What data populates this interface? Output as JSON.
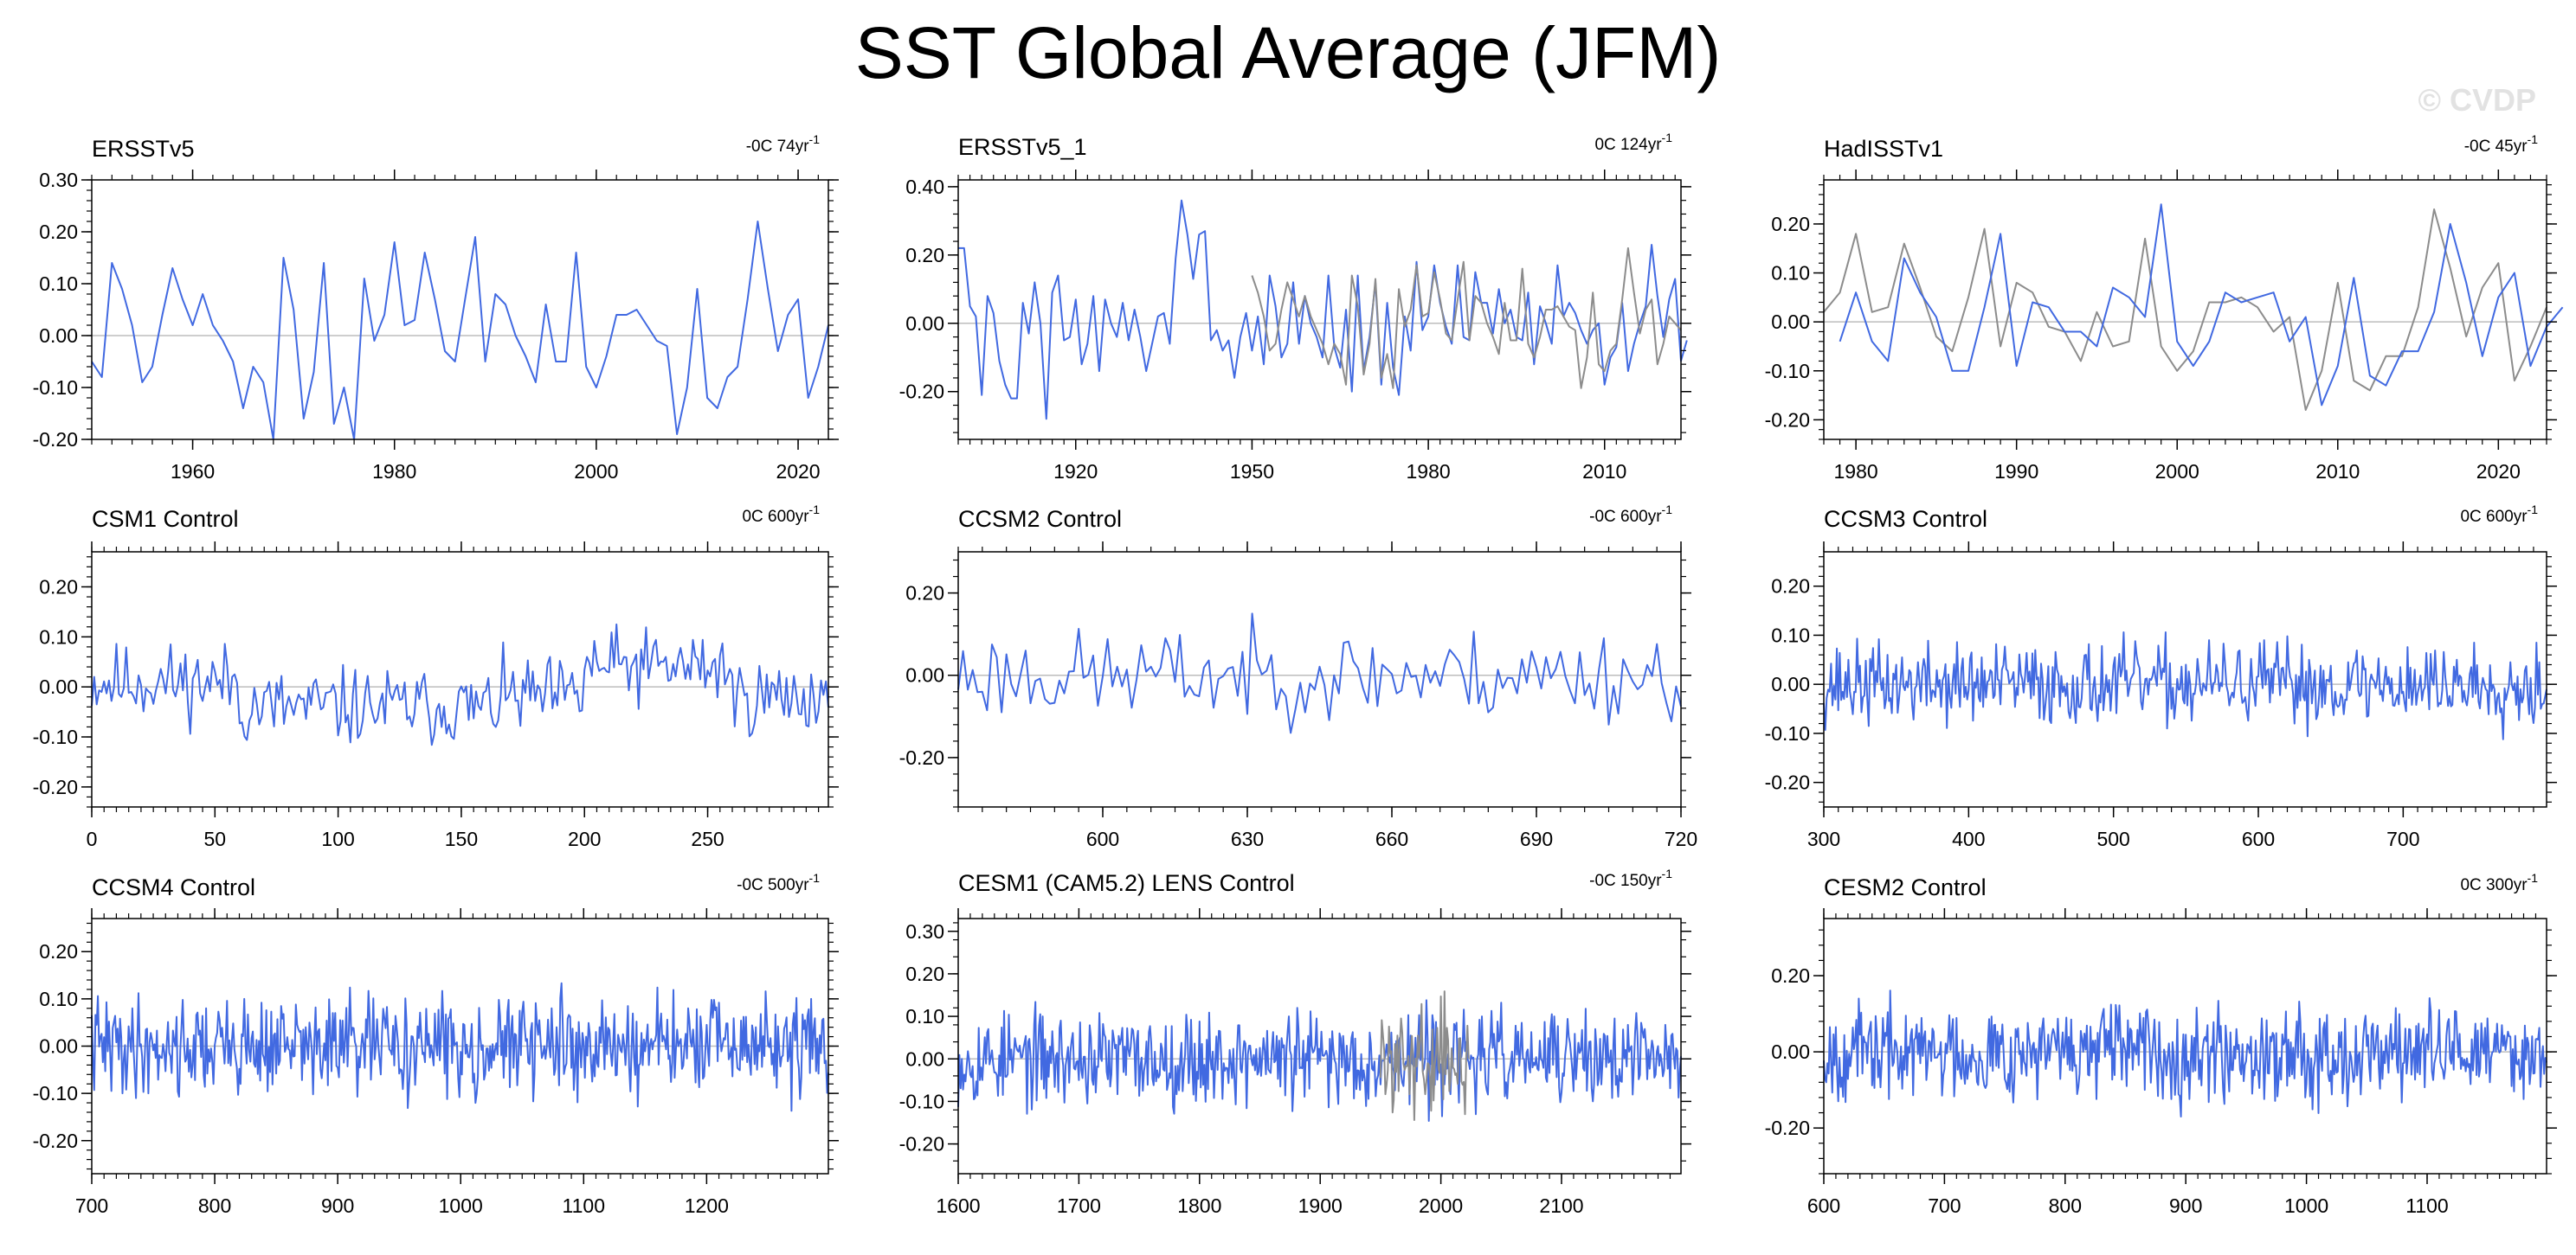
{
  "figure": {
    "title": "SST Global Average (JFM)",
    "watermark": "© CVDP"
  },
  "colors": {
    "series_main": "#4169e1",
    "series_obs": "#8c8c8c",
    "zero_line": "#bdbdbd",
    "axis": "#000000"
  },
  "chart_data": [
    {
      "type": "line",
      "title": "ERSSTv5",
      "trend_label": "-0C 74yr",
      "trend_sup": "-1",
      "xlim": [
        1950,
        2023
      ],
      "xticks": [
        1960,
        1980,
        2000,
        2020
      ],
      "ylim": [
        -0.2,
        0.3
      ],
      "yticks": [
        -0.2,
        -0.1,
        0.0,
        0.1,
        0.2,
        0.3
      ],
      "ytick_labels": [
        "-0.20",
        "-0.10",
        "0.00",
        "0.10",
        "0.20",
        "0.30"
      ],
      "series": [
        {
          "x": [
            1950,
            1951,
            1952,
            1953,
            1954,
            1955,
            1956,
            1957,
            1958,
            1959,
            1960,
            1961,
            1962,
            1963,
            1964,
            1965,
            1966,
            1967,
            1968,
            1969,
            1970,
            1971,
            1972,
            1973,
            1974,
            1975,
            1976,
            1977,
            1978,
            1979,
            1980,
            1981,
            1982,
            1983,
            1984,
            1985,
            1986,
            1987,
            1988,
            1989,
            1990,
            1991,
            1992,
            1993,
            1994,
            1995,
            1996,
            1997,
            1998,
            1999,
            2000,
            2001,
            2002,
            2003,
            2004,
            2005,
            2006,
            2007,
            2008,
            2009,
            2010,
            2011,
            2012,
            2013,
            2014,
            2015,
            2016,
            2017,
            2018,
            2019,
            2020,
            2021,
            2022,
            2023
          ],
          "values": [
            -0.05,
            -0.08,
            0.14,
            0.09,
            0.02,
            -0.09,
            -0.06,
            0.04,
            0.13,
            0.07,
            0.02,
            0.08,
            0.02,
            -0.01,
            -0.05,
            -0.14,
            -0.06,
            -0.09,
            -0.2,
            0.15,
            0.05,
            -0.16,
            -0.07,
            0.14,
            -0.17,
            -0.1,
            -0.2,
            0.11,
            -0.01,
            0.04,
            0.18,
            0.02,
            0.03,
            0.16,
            0.07,
            -0.03,
            -0.05,
            0.07,
            0.19,
            -0.05,
            0.08,
            0.06,
            0.0,
            -0.04,
            -0.09,
            0.06,
            -0.05,
            -0.05,
            0.16,
            -0.06,
            -0.1,
            -0.04,
            0.04,
            0.04,
            0.05,
            0.02,
            -0.01,
            -0.02,
            -0.19,
            -0.1,
            0.09,
            -0.12,
            -0.14,
            -0.08,
            -0.06,
            0.07,
            0.22,
            0.09,
            -0.03,
            0.04,
            0.07,
            -0.12,
            -0.06,
            0.02
          ],
          "color": "#4169e1"
        }
      ]
    },
    {
      "type": "line",
      "title": "ERSSTv5_1",
      "trend_label": "0C 124yr",
      "trend_sup": "-1",
      "xlim": [
        1900,
        2023
      ],
      "xticks": [
        1920,
        1950,
        1980,
        2010
      ],
      "ylim": [
        -0.34,
        0.42
      ],
      "yticks": [
        -0.2,
        0.0,
        0.2,
        0.4
      ],
      "ytick_labels": [
        "-0.20",
        "0.00",
        "0.20",
        "0.40"
      ],
      "series": [
        {
          "x0": 1900,
          "step": 1,
          "values": [
            0.22,
            0.22,
            0.05,
            0.02,
            -0.21,
            0.08,
            0.03,
            -0.11,
            -0.18,
            -0.22,
            -0.22,
            0.06,
            -0.03,
            0.12,
            0.0,
            -0.28,
            0.09,
            0.14,
            -0.05,
            -0.04,
            0.07,
            -0.12,
            -0.06,
            0.08,
            -0.14,
            0.07,
            0.0,
            -0.04,
            0.06,
            -0.05,
            0.04,
            -0.04,
            -0.14,
            -0.06,
            0.02,
            0.03,
            -0.06,
            0.19,
            0.36,
            0.26,
            0.13,
            0.26,
            0.27,
            -0.05,
            -0.02,
            -0.08,
            -0.05,
            -0.16,
            -0.04,
            0.03,
            -0.08,
            0.02,
            -0.12,
            0.14,
            0.05,
            -0.1,
            -0.06,
            0.12,
            -0.06,
            0.08,
            0.0,
            -0.04,
            -0.1,
            0.14,
            -0.07,
            -0.13,
            0.04,
            -0.2,
            0.14,
            -0.14,
            -0.04,
            0.12,
            -0.18,
            0.06,
            -0.13,
            -0.21,
            0.02,
            -0.08,
            0.18,
            -0.02,
            0.02,
            0.17,
            0.06,
            -0.01,
            -0.06,
            0.17,
            -0.04,
            -0.05,
            0.15,
            0.06,
            0.06,
            -0.03,
            0.1,
            0.0,
            0.04,
            -0.04,
            -0.05,
            0.09,
            -0.12,
            0.05,
            0.0,
            -0.06,
            0.17,
            0.02,
            0.06,
            0.03,
            -0.02,
            -0.06,
            -0.02,
            0.0,
            -0.18,
            -0.1,
            -0.07,
            0.06,
            -0.14,
            -0.06,
            0.0,
            0.05,
            0.23,
            0.08,
            -0.04,
            0.07,
            0.13,
            -0.11,
            -0.05
          ],
          "color": "#4169e1"
        },
        {
          "x0": 1950,
          "step": 1,
          "values": [
            0.14,
            0.09,
            0.02,
            -0.08,
            -0.06,
            0.04,
            0.12,
            0.07,
            0.02,
            0.08,
            0.02,
            -0.02,
            -0.06,
            -0.12,
            -0.06,
            -0.09,
            -0.18,
            0.14,
            0.05,
            -0.15,
            -0.06,
            0.13,
            -0.16,
            -0.09,
            -0.19,
            0.1,
            -0.01,
            0.04,
            0.17,
            0.02,
            0.03,
            0.15,
            0.07,
            -0.03,
            -0.05,
            0.07,
            0.18,
            -0.05,
            0.08,
            0.06,
            0.0,
            -0.04,
            -0.09,
            0.06,
            -0.05,
            -0.05,
            0.16,
            -0.06,
            -0.1,
            -0.04,
            0.04,
            0.04,
            0.05,
            0.02,
            -0.01,
            -0.02,
            -0.19,
            -0.1,
            0.09,
            -0.12,
            -0.14,
            -0.08,
            -0.06,
            0.07,
            0.22,
            0.09,
            -0.03,
            0.04,
            0.07,
            -0.12,
            -0.06,
            0.02,
            0.0,
            -0.02
          ],
          "color": "#8c8c8c"
        }
      ]
    },
    {
      "type": "line",
      "title": "HadISSTv1",
      "trend_label": "-0C 45yr",
      "trend_sup": "-1",
      "xlim": [
        1978,
        2023
      ],
      "xticks": [
        1980,
        1990,
        2000,
        2010,
        2020
      ],
      "ylim": [
        -0.24,
        0.29
      ],
      "yticks": [
        -0.2,
        -0.1,
        0.0,
        0.1,
        0.2
      ],
      "ytick_labels": [
        "-0.20",
        "-0.10",
        "0.00",
        "0.10",
        "0.20"
      ],
      "series": [
        {
          "x0": 1978,
          "step": 1,
          "values": [
            0.02,
            0.06,
            0.18,
            0.02,
            0.03,
            0.16,
            0.07,
            -0.03,
            -0.06,
            0.05,
            0.19,
            -0.05,
            0.08,
            0.06,
            -0.01,
            -0.02,
            -0.08,
            0.02,
            -0.05,
            -0.04,
            0.17,
            -0.05,
            -0.1,
            -0.06,
            0.04,
            0.04,
            0.05,
            0.03,
            -0.02,
            0.01,
            -0.18,
            -0.1,
            0.08,
            -0.12,
            -0.14,
            -0.07,
            -0.07,
            0.03,
            0.23,
            0.11,
            -0.03,
            0.07,
            0.12,
            -0.12,
            -0.05,
            0.03
          ],
          "color": "#8c8c8c"
        },
        {
          "x0": 1979,
          "step": 1,
          "values": [
            -0.04,
            0.06,
            -0.04,
            -0.08,
            0.13,
            0.06,
            0.01,
            -0.1,
            -0.1,
            0.03,
            0.18,
            -0.09,
            0.04,
            0.03,
            -0.02,
            -0.02,
            -0.05,
            0.07,
            0.05,
            0.01,
            0.24,
            -0.04,
            -0.09,
            -0.04,
            0.06,
            0.04,
            0.05,
            0.06,
            -0.04,
            0.01,
            -0.17,
            -0.09,
            0.09,
            -0.11,
            -0.13,
            -0.06,
            -0.06,
            0.02,
            0.2,
            0.08,
            -0.07,
            0.05,
            0.1,
            -0.09,
            -0.01,
            0.03
          ],
          "color": "#4169e1"
        }
      ]
    },
    {
      "type": "line",
      "title": "CSM1 Control",
      "trend_label": "0C 600yr",
      "trend_sup": "-1",
      "xlim": [
        0,
        299
      ],
      "xticks": [
        0,
        50,
        100,
        150,
        200,
        250
      ],
      "ylim": [
        -0.24,
        0.27
      ],
      "yticks": [
        -0.2,
        -0.1,
        0.0,
        0.1,
        0.2
      ],
      "ytick_labels": [
        "-0.20",
        "-0.10",
        "0.00",
        "0.10",
        "0.20"
      ],
      "series": [
        {
          "generator": {
            "seed": 11,
            "n": 300,
            "x0": 0,
            "step": 1,
            "amp": 0.06,
            "segments": [
              [
                0,
                60,
                0.01
              ],
              [
                60,
                165,
                -0.04
              ],
              [
                165,
                200,
                -0.02
              ],
              [
                200,
                260,
                0.04
              ],
              [
                260,
                300,
                -0.02
              ]
            ]
          },
          "color": "#4169e1"
        }
      ]
    },
    {
      "type": "line",
      "title": "CCSM2 Control",
      "trend_label": "-0C 600yr",
      "trend_sup": "-1",
      "xlim": [
        570,
        720
      ],
      "xticks": [
        600,
        630,
        660,
        690,
        720
      ],
      "ylim": [
        -0.32,
        0.3
      ],
      "yticks": [
        -0.2,
        0.0,
        0.2
      ],
      "ytick_labels": [
        "-0.20",
        "0.00",
        "0.20"
      ],
      "series": [
        {
          "generator": {
            "seed": 23,
            "n": 151,
            "x0": 570,
            "step": 1,
            "amp": 0.085,
            "segments": [
              [
                0,
                151,
                0.0
              ]
            ]
          },
          "color": "#4169e1"
        }
      ]
    },
    {
      "type": "line",
      "title": "CCSM3 Control",
      "trend_label": "0C 600yr",
      "trend_sup": "-1",
      "xlim": [
        300,
        799
      ],
      "xticks": [
        300,
        400,
        500,
        600,
        700
      ],
      "ylim": [
        -0.25,
        0.27
      ],
      "yticks": [
        -0.2,
        -0.1,
        0.0,
        0.1,
        0.2
      ],
      "ytick_labels": [
        "-0.20",
        "-0.10",
        "0.00",
        "0.10",
        "0.20"
      ],
      "series": [
        {
          "generator": {
            "seed": 37,
            "n": 500,
            "x0": 300,
            "step": 1,
            "amp": 0.065,
            "segments": [
              [
                0,
                500,
                0.0
              ]
            ]
          },
          "color": "#4169e1"
        }
      ]
    },
    {
      "type": "line",
      "title": "CCSM4 Control",
      "trend_label": "-0C 500yr",
      "trend_sup": "-1",
      "xlim": [
        700,
        1299
      ],
      "xticks": [
        700,
        800,
        900,
        1000,
        1100,
        1200
      ],
      "ylim": [
        -0.27,
        0.27
      ],
      "yticks": [
        -0.2,
        -0.1,
        0.0,
        0.1,
        0.2
      ],
      "ytick_labels": [
        "-0.20",
        "-0.10",
        "0.00",
        "0.10",
        "0.20"
      ],
      "series": [
        {
          "generator": {
            "seed": 41,
            "n": 600,
            "x0": 700,
            "step": 1,
            "amp": 0.08,
            "segments": [
              [
                0,
                600,
                0.0
              ]
            ]
          },
          "color": "#4169e1"
        }
      ]
    },
    {
      "type": "line",
      "title": "CESM1 (CAM5.2) LENS Control",
      "trend_label": "-0C 150yr",
      "trend_sup": "-1",
      "xlim": [
        1600,
        2199
      ],
      "xticks": [
        1600,
        1700,
        1800,
        1900,
        2000,
        2100
      ],
      "ylim": [
        -0.27,
        0.33
      ],
      "yticks": [
        -0.2,
        -0.1,
        0.0,
        0.1,
        0.2,
        0.3
      ],
      "ytick_labels": [
        "-0.20",
        "-0.10",
        "0.00",
        "0.10",
        "0.20",
        "0.30"
      ],
      "series": [
        {
          "generator": {
            "seed": 53,
            "n": 600,
            "x0": 1600,
            "step": 1,
            "amp": 0.085,
            "segments": [
              [
                0,
                600,
                0.0
              ]
            ]
          },
          "color": "#4169e1"
        },
        {
          "generator": {
            "seed": 59,
            "n": 74,
            "x0": 1950,
            "step": 1,
            "amp": 0.09,
            "segments": [
              [
                0,
                74,
                0.0
              ]
            ]
          },
          "color": "#8c8c8c"
        }
      ]
    },
    {
      "type": "line",
      "title": "CESM2 Control",
      "trend_label": "0C 300yr",
      "trend_sup": "-1",
      "xlim": [
        600,
        1199
      ],
      "xticks": [
        600,
        700,
        800,
        900,
        1000,
        1100
      ],
      "ylim": [
        -0.32,
        0.35
      ],
      "yticks": [
        -0.2,
        0.0,
        0.2
      ],
      "ytick_labels": [
        "-0.20",
        "0.00",
        "0.20"
      ],
      "series": [
        {
          "generator": {
            "seed": 67,
            "n": 600,
            "x0": 600,
            "step": 1,
            "amp": 0.095,
            "segments": [
              [
                0,
                600,
                0.0
              ]
            ]
          },
          "color": "#4169e1"
        }
      ]
    }
  ]
}
